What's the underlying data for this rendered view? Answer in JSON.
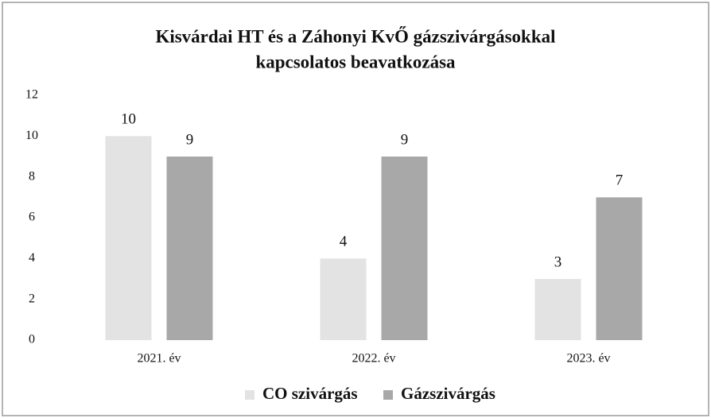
{
  "chart_data": {
    "type": "bar",
    "title": [
      "Kisvárdai HT és a Záhonyi KvŐ gázszivárgásokkal",
      "kapcsolatos beavatkozása"
    ],
    "categories": [
      "2021. év",
      "2022. év",
      "2023. év"
    ],
    "series": [
      {
        "name": "CO szivárgás",
        "color": "#e3e3e3",
        "values": [
          10,
          4,
          3
        ]
      },
      {
        "name": "Gázszivárgás",
        "color": "#a8a8a8",
        "values": [
          9,
          9,
          7
        ]
      }
    ],
    "ylim": [
      0,
      12
    ],
    "yticks": [
      0,
      2,
      4,
      6,
      8,
      10,
      12
    ],
    "grid": false,
    "legend": "bottom"
  }
}
